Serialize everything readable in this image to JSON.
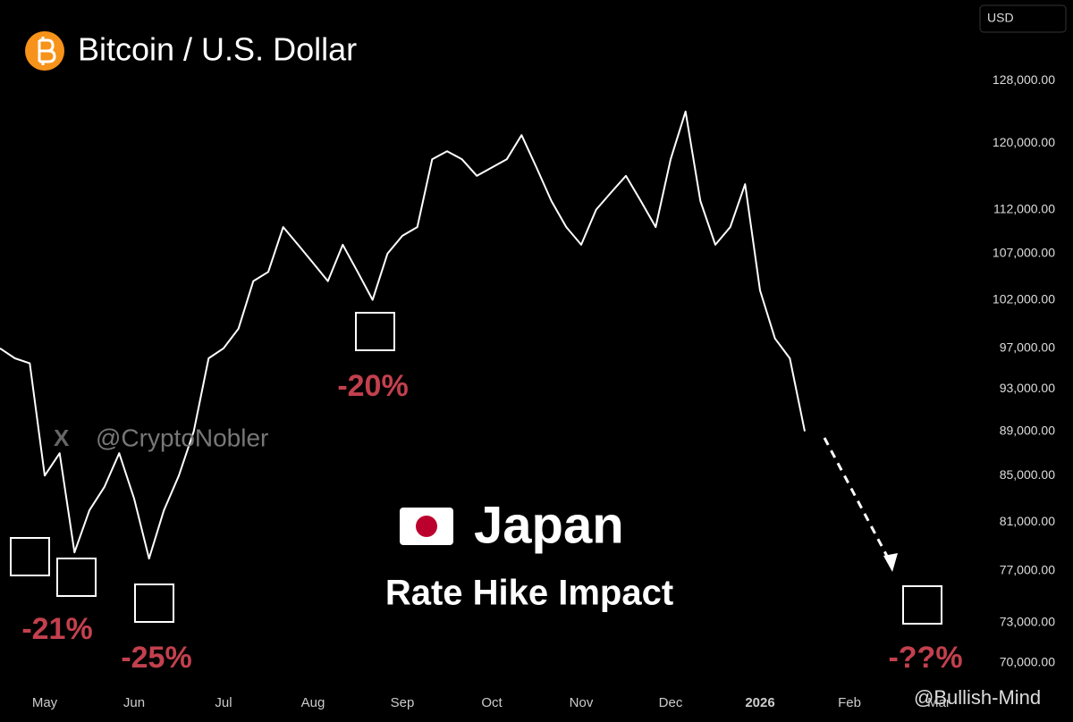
{
  "chart_data": {
    "type": "line",
    "title": "Bitcoin / U.S. Dollar",
    "currency": "USD",
    "log_scale": true,
    "categories": [
      null,
      null,
      null,
      "May",
      null,
      null,
      null,
      null,
      null,
      "Jun",
      null,
      null,
      null,
      null,
      null,
      "Jul",
      null,
      null,
      null,
      null,
      null,
      "Aug",
      null,
      null,
      null,
      null,
      null,
      "Sep",
      null,
      null,
      null,
      null,
      null,
      "Oct",
      null,
      null,
      null,
      null,
      null,
      "Nov",
      null,
      null,
      null,
      null,
      null,
      "Dec",
      null,
      null,
      null,
      null,
      null,
      "2026",
      null,
      null,
      null,
      null,
      null,
      "Feb",
      null,
      null,
      null,
      null,
      null,
      "Mar",
      null
    ],
    "series": [
      {
        "name": "BTCUSD",
        "color": "#ffffff",
        "values": [
          97000,
          96000,
          95500,
          85000,
          87000,
          78500,
          82000,
          84000,
          87000,
          83000,
          78000,
          82000,
          85000,
          89000,
          96000,
          97000,
          99000,
          104000,
          105000,
          110000,
          108000,
          106000,
          104000,
          108000,
          105000,
          102000,
          107000,
          109000,
          110000,
          118000,
          119000,
          118000,
          116000,
          117000,
          118000,
          121000,
          117000,
          113000,
          110000,
          108000,
          112000,
          114000,
          116000,
          113000,
          110000,
          118000,
          124000,
          113000,
          108000,
          110000,
          115000,
          103000,
          98000,
          96000,
          89000,
          null,
          null,
          null,
          null,
          null,
          null,
          null,
          null,
          null,
          null
        ]
      }
    ],
    "ylim": [
      68200,
      139200
    ],
    "yticks": [
      {
        "value": 128000,
        "label": "128,000.00"
      },
      {
        "value": 120000,
        "label": "120,000.00"
      },
      {
        "value": 112000,
        "label": "112,000.00"
      },
      {
        "value": 107000,
        "label": "107,000.00"
      },
      {
        "value": 102000,
        "label": "102,000.00"
      },
      {
        "value": 97000,
        "label": "97,000.00"
      },
      {
        "value": 93000,
        "label": "93,000.00"
      },
      {
        "value": 89000,
        "label": "89,000.00"
      },
      {
        "value": 85000,
        "label": "85,000.00"
      },
      {
        "value": 81000,
        "label": "81,000.00"
      },
      {
        "value": 77000,
        "label": "77,000.00"
      },
      {
        "value": 73000,
        "label": "73,000.00"
      },
      {
        "value": 70000,
        "label": "70,000.00"
      }
    ],
    "annotations": [
      "-21%",
      "-25%",
      "-20%",
      "-??%"
    ],
    "headline": "Japan",
    "subheadline": "Rate Hike Impact",
    "watermarks": [
      "@CryptoNobler",
      "@Bullish-Mind"
    ]
  }
}
